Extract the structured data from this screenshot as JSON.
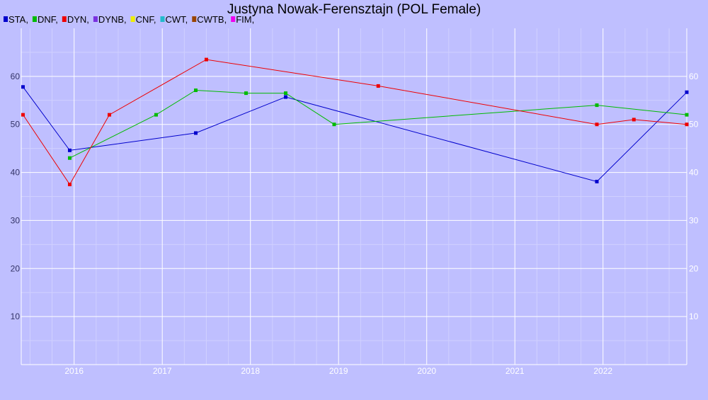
{
  "chart_data": {
    "type": "line",
    "title": "Justyna Nowak-Ferensztajn (POL Female)",
    "legend": [
      {
        "label": "STA,",
        "color": "#0000cc"
      },
      {
        "label": "DNF,",
        "color": "#00bb00"
      },
      {
        "label": "DYN,",
        "color": "#ee0000"
      },
      {
        "label": "DYNB,",
        "color": "#7a30e0"
      },
      {
        "label": "CNF,",
        "color": "#eeee00"
      },
      {
        "label": "CWT,",
        "color": "#22bbcc"
      },
      {
        "label": "CWTB,",
        "color": "#994400"
      },
      {
        "label": "FIM,",
        "color": "#ee00ee"
      }
    ],
    "xlim": [
      2015.4,
      2022.95
    ],
    "ylim": [
      0,
      70
    ],
    "x_ticks": [
      2016,
      2017,
      2018,
      2019,
      2020,
      2021,
      2022
    ],
    "y_ticks": [
      10,
      20,
      30,
      40,
      50,
      60
    ],
    "grid": true,
    "series": [
      {
        "name": "STA",
        "color": "#0000cc",
        "points": [
          [
            2015.42,
            57.8
          ],
          [
            2015.95,
            44.6
          ],
          [
            2017.38,
            48.2
          ],
          [
            2018.4,
            55.7
          ],
          [
            2021.93,
            38.1
          ],
          [
            2022.95,
            56.7
          ]
        ]
      },
      {
        "name": "DNF",
        "color": "#00bb00",
        "points": [
          [
            2015.95,
            43.0
          ],
          [
            2016.93,
            52.0
          ],
          [
            2017.38,
            57.1
          ],
          [
            2017.95,
            56.5
          ],
          [
            2018.4,
            56.5
          ],
          [
            2018.95,
            50.0
          ],
          [
            2021.93,
            54.0
          ],
          [
            2022.95,
            52.0
          ]
        ]
      },
      {
        "name": "DYN",
        "color": "#ee0000",
        "points": [
          [
            2015.42,
            52.0
          ],
          [
            2015.95,
            37.5
          ],
          [
            2016.4,
            52.0
          ],
          [
            2017.5,
            63.5
          ],
          [
            2019.45,
            58.0
          ],
          [
            2021.93,
            50.0
          ],
          [
            2022.35,
            51.0
          ],
          [
            2022.95,
            50.0
          ]
        ]
      }
    ]
  }
}
